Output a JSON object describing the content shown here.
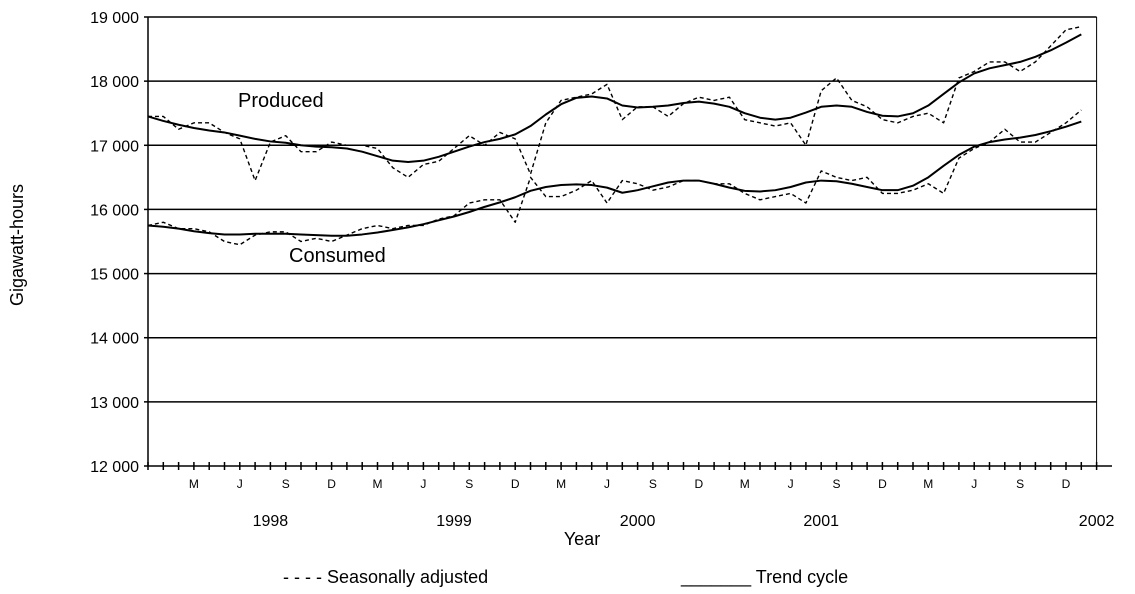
{
  "chart_data": {
    "type": "line",
    "title": "",
    "xlabel": "Year",
    "ylabel": "Gigawatt-hours",
    "ylim": [
      12000,
      19000
    ],
    "yticks": [
      12000,
      13000,
      14000,
      15000,
      16000,
      17000,
      18000,
      19000
    ],
    "ytick_labels": [
      "12 000",
      "13 000",
      "14 000",
      "15 000",
      "16 000",
      "17 000",
      "18 000",
      "19 000"
    ],
    "x_start": "1997-12",
    "month_labels": [
      "M",
      "J",
      "S",
      "D",
      "M",
      "J",
      "S",
      "D",
      "M",
      "J",
      "S",
      "D",
      "M",
      "J",
      "S",
      "D",
      "M",
      "J",
      "S",
      "D"
    ],
    "year_labels": [
      "1998",
      "1999",
      "2000",
      "2001",
      "2002"
    ],
    "grid": "horizontal",
    "legend": {
      "placement": "bottom",
      "seasonal_label": "- - - - Seasonally adjusted",
      "trend_label": "_______ Trend cycle"
    },
    "annotations": {
      "produced": "Produced",
      "consumed": "Consumed"
    },
    "colors": {
      "line": "#000000",
      "grid": "#000000",
      "background": "#ffffff"
    },
    "series": [
      {
        "name": "Produced",
        "style": "seasonally-adjusted",
        "values": [
          17450,
          17450,
          17250,
          17350,
          17350,
          17200,
          17100,
          16450,
          17050,
          17150,
          16900,
          16900,
          17050,
          17000,
          17000,
          16950,
          16650,
          16500,
          16700,
          16750,
          16950,
          17150,
          17000,
          17200,
          17100,
          16550,
          17350,
          17700,
          17750,
          17800,
          17950,
          17400,
          17600,
          17600,
          17450,
          17650,
          17750,
          17700,
          17750,
          17400,
          17350,
          17300,
          17350,
          17000,
          17850,
          18050,
          17700,
          17600,
          17400,
          17350,
          17450,
          17500,
          17350,
          18050,
          18150,
          18300,
          18300,
          18150,
          18300,
          18550,
          18800,
          18850
        ]
      },
      {
        "name": "Produced",
        "style": "trend-cycle",
        "values": [
          17450,
          17380,
          17320,
          17270,
          17230,
          17200,
          17150,
          17100,
          17060,
          17040,
          17000,
          16980,
          16970,
          16950,
          16900,
          16830,
          16760,
          16740,
          16760,
          16820,
          16900,
          16980,
          17050,
          17100,
          17170,
          17300,
          17480,
          17640,
          17740,
          17760,
          17730,
          17620,
          17590,
          17600,
          17620,
          17660,
          17680,
          17650,
          17600,
          17500,
          17430,
          17400,
          17430,
          17510,
          17600,
          17620,
          17600,
          17520,
          17460,
          17450,
          17500,
          17620,
          17800,
          17980,
          18120,
          18200,
          18250,
          18300,
          18380,
          18480,
          18600,
          18730
        ]
      },
      {
        "name": "Consumed",
        "style": "seasonally-adjusted",
        "values": [
          15750,
          15800,
          15700,
          15700,
          15650,
          15500,
          15450,
          15600,
          15650,
          15650,
          15500,
          15550,
          15500,
          15600,
          15700,
          15750,
          15700,
          15750,
          15750,
          15850,
          15900,
          16100,
          16150,
          16150,
          15800,
          16500,
          16200,
          16200,
          16300,
          16450,
          16100,
          16450,
          16400,
          16300,
          16350,
          16450,
          16450,
          16400,
          16400,
          16250,
          16150,
          16200,
          16250,
          16100,
          16600,
          16500,
          16450,
          16500,
          16250,
          16250,
          16300,
          16400,
          16250,
          16800,
          16950,
          17050,
          17250,
          17050,
          17050,
          17200,
          17350,
          17550
        ]
      },
      {
        "name": "Consumed",
        "style": "trend-cycle",
        "values": [
          15750,
          15730,
          15700,
          15660,
          15630,
          15610,
          15610,
          15620,
          15620,
          15620,
          15610,
          15600,
          15590,
          15590,
          15610,
          15640,
          15680,
          15720,
          15770,
          15830,
          15890,
          15960,
          16040,
          16110,
          16190,
          16290,
          16350,
          16380,
          16390,
          16380,
          16340,
          16260,
          16300,
          16360,
          16420,
          16450,
          16450,
          16400,
          16340,
          16290,
          16280,
          16300,
          16350,
          16420,
          16450,
          16440,
          16400,
          16350,
          16300,
          16300,
          16370,
          16500,
          16680,
          16850,
          16980,
          17050,
          17090,
          17120,
          17160,
          17220,
          17290,
          17370
        ]
      }
    ]
  }
}
